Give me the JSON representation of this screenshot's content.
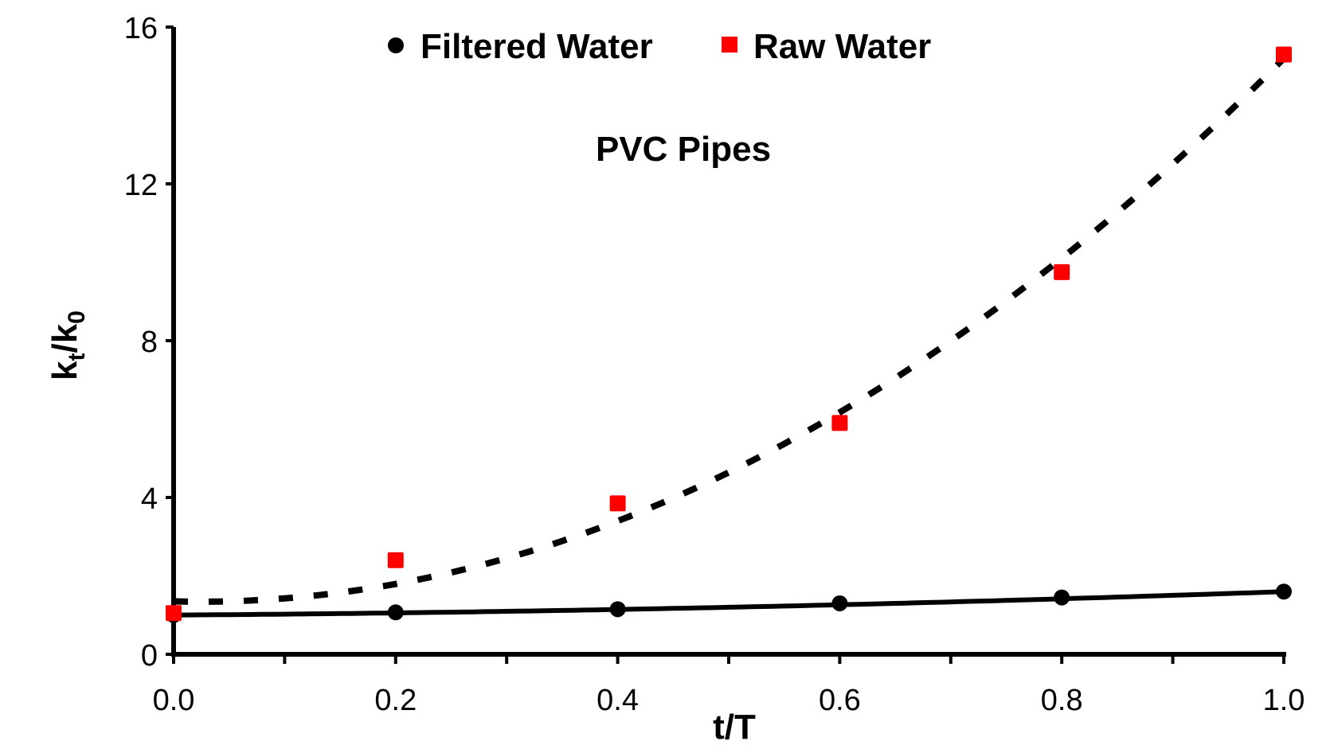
{
  "chart_data": {
    "type": "scatter",
    "title": "PVC Pipes",
    "xlabel": "t/T",
    "ylabel_main": "k",
    "ylabel_sub1": "t",
    "ylabel_mid": "/k",
    "ylabel_sub2": "0",
    "xlim": [
      0,
      1.0
    ],
    "ylim": [
      0,
      16
    ],
    "xticks": [
      "0.0",
      "0.2",
      "0.4",
      "0.6",
      "0.8",
      "1.0"
    ],
    "xtick_values": [
      0,
      0.2,
      0.4,
      0.6,
      0.8,
      1.0
    ],
    "yticks": [
      "0",
      "4",
      "8",
      "12",
      "16"
    ],
    "ytick_values": [
      0,
      4,
      8,
      12,
      16
    ],
    "legend_position": "top-center",
    "grid": false,
    "series": [
      {
        "name": "Filtered Water",
        "marker": "circle",
        "color": "#000000",
        "x": [
          0,
          0.2,
          0.4,
          0.6,
          0.8,
          1.0
        ],
        "y": [
          1.0,
          1.07,
          1.15,
          1.3,
          1.45,
          1.6
        ],
        "trendline": {
          "style": "solid",
          "coefficients": [
            1.0,
            0.2,
            0.4
          ]
        }
      },
      {
        "name": "Raw Water",
        "marker": "square",
        "color": "#ff0000",
        "x": [
          0,
          0.2,
          0.4,
          0.6,
          0.8,
          1.0
        ],
        "y": [
          1.05,
          2.4,
          3.85,
          5.9,
          9.75,
          15.3
        ],
        "trendline": {
          "style": "dashed",
          "coefficients": [
            1.35,
            -0.69,
            14.54
          ]
        }
      }
    ]
  }
}
